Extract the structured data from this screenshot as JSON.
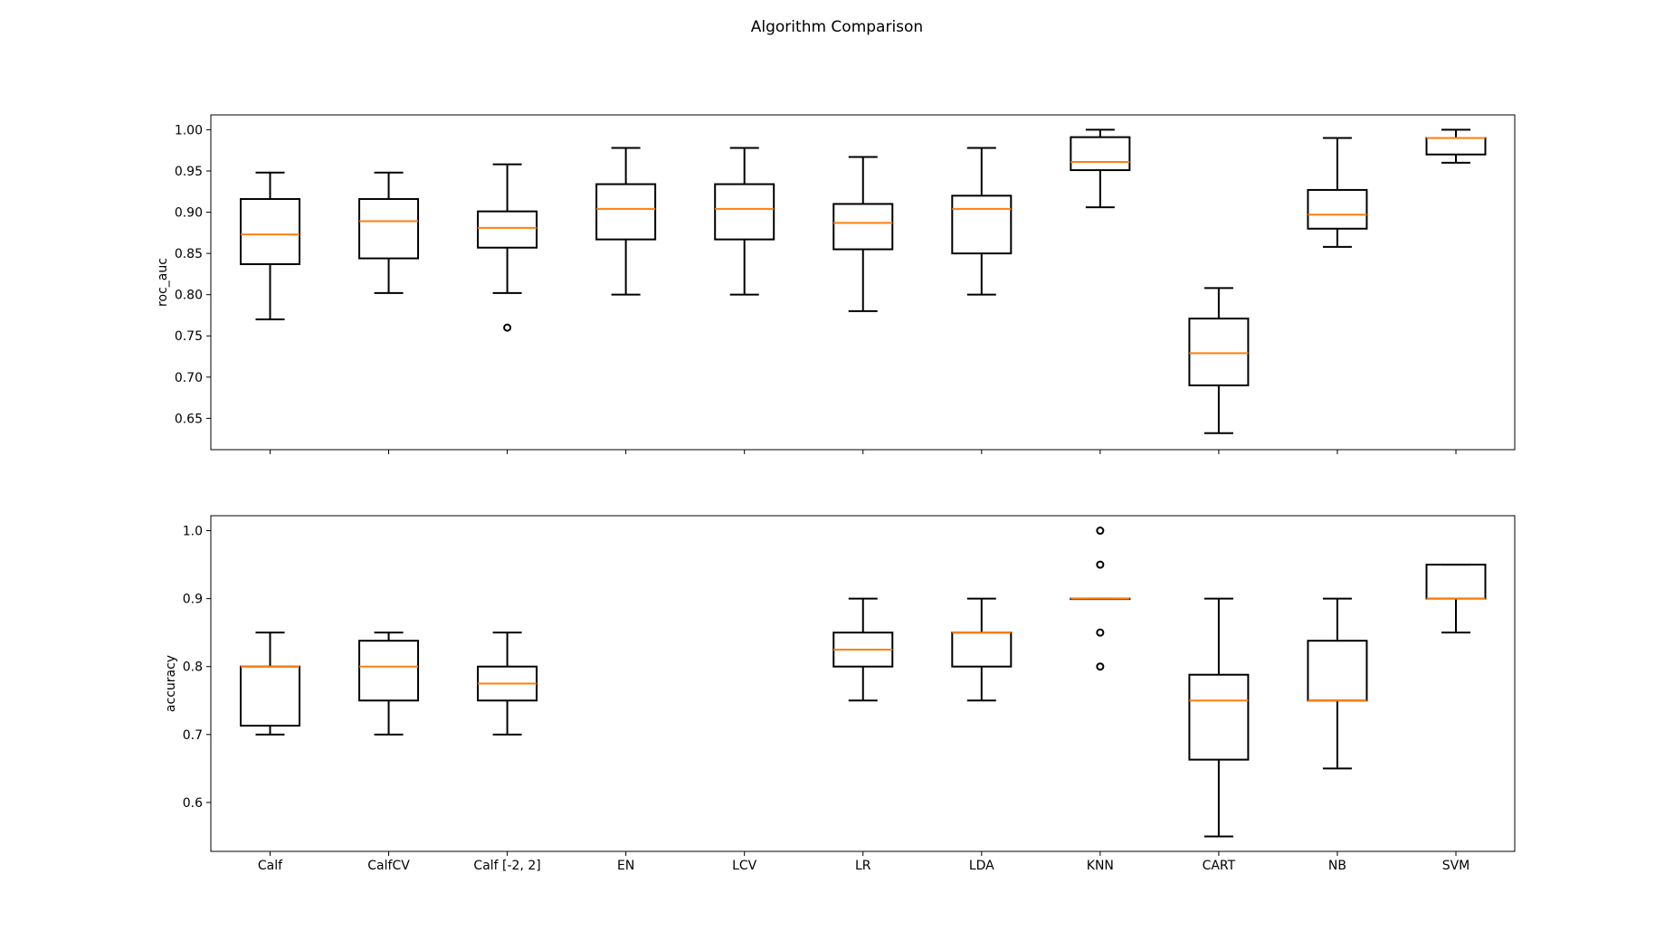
{
  "chart_data": {
    "type": "box",
    "title": "Algorithm Comparison",
    "categories": [
      "Calf",
      "CalfCV",
      "Calf [-2, 2]",
      "EN",
      "LCV",
      "LR",
      "LDA",
      "KNN",
      "CART",
      "NB",
      "SVM"
    ],
    "colors": {
      "box": "#000000",
      "median": "#ff7f0e",
      "background": "#ffffff"
    },
    "panels": [
      {
        "ylabel": "roc_auc",
        "ylim": [
          0.612,
          1.018
        ],
        "yticks": [
          0.65,
          0.7,
          0.75,
          0.8,
          0.85,
          0.9,
          0.95,
          1.0
        ],
        "ytick_labels": [
          "0.65",
          "0.70",
          "0.75",
          "0.80",
          "0.85",
          "0.90",
          "0.95",
          "1.00"
        ],
        "show_xticklabels": false,
        "boxes": [
          {
            "category": "Calf",
            "whislo": 0.77,
            "q1": 0.837,
            "med": 0.873,
            "q3": 0.916,
            "whishi": 0.948,
            "fliers": []
          },
          {
            "category": "CalfCV",
            "whislo": 0.802,
            "q1": 0.844,
            "med": 0.889,
            "q3": 0.916,
            "whishi": 0.948,
            "fliers": []
          },
          {
            "category": "Calf [-2, 2]",
            "whislo": 0.802,
            "q1": 0.857,
            "med": 0.881,
            "q3": 0.901,
            "whishi": 0.958,
            "fliers": [
              0.76
            ]
          },
          {
            "category": "EN",
            "whislo": 0.8,
            "q1": 0.867,
            "med": 0.904,
            "q3": 0.934,
            "whishi": 0.978,
            "fliers": []
          },
          {
            "category": "LCV",
            "whislo": 0.8,
            "q1": 0.867,
            "med": 0.904,
            "q3": 0.934,
            "whishi": 0.978,
            "fliers": []
          },
          {
            "category": "LR",
            "whislo": 0.78,
            "q1": 0.855,
            "med": 0.887,
            "q3": 0.91,
            "whishi": 0.967,
            "fliers": []
          },
          {
            "category": "LDA",
            "whislo": 0.8,
            "q1": 0.85,
            "med": 0.904,
            "q3": 0.92,
            "whishi": 0.978,
            "fliers": []
          },
          {
            "category": "KNN",
            "whislo": 0.906,
            "q1": 0.951,
            "med": 0.961,
            "q3": 0.991,
            "whishi": 1.0,
            "fliers": []
          },
          {
            "category": "CART",
            "whislo": 0.632,
            "q1": 0.69,
            "med": 0.729,
            "q3": 0.771,
            "whishi": 0.808,
            "fliers": []
          },
          {
            "category": "NB",
            "whislo": 0.858,
            "q1": 0.88,
            "med": 0.897,
            "q3": 0.927,
            "whishi": 0.99,
            "fliers": []
          },
          {
            "category": "SVM",
            "whislo": 0.96,
            "q1": 0.97,
            "med": 0.99,
            "q3": 0.99,
            "whishi": 1.0,
            "fliers": []
          }
        ]
      },
      {
        "ylabel": "accuracy",
        "ylim": [
          0.528,
          1.022
        ],
        "yticks": [
          0.6,
          0.7,
          0.8,
          0.9,
          1.0
        ],
        "ytick_labels": [
          "0.6",
          "0.7",
          "0.8",
          "0.9",
          "1.0"
        ],
        "show_xticklabels": true,
        "boxes": [
          {
            "category": "Calf",
            "whislo": 0.7,
            "q1": 0.713,
            "med": 0.8,
            "q3": 0.8,
            "whishi": 0.85,
            "fliers": []
          },
          {
            "category": "CalfCV",
            "whislo": 0.7,
            "q1": 0.75,
            "med": 0.8,
            "q3": 0.838,
            "whishi": 0.85,
            "fliers": []
          },
          {
            "category": "Calf [-2, 2]",
            "whislo": 0.7,
            "q1": 0.75,
            "med": 0.775,
            "q3": 0.8,
            "whishi": 0.85,
            "fliers": []
          },
          {
            "category": "LR",
            "whislo": 0.75,
            "q1": 0.8,
            "med": 0.825,
            "q3": 0.85,
            "whishi": 0.9,
            "fliers": []
          },
          {
            "category": "LDA",
            "whislo": 0.75,
            "q1": 0.8,
            "med": 0.85,
            "q3": 0.85,
            "whishi": 0.9,
            "fliers": []
          },
          {
            "category": "KNN",
            "whislo": 0.9,
            "q1": 0.9,
            "med": 0.9,
            "q3": 0.9,
            "whishi": 0.9,
            "fliers": [
              0.8,
              0.85,
              0.95,
              1.0
            ]
          },
          {
            "category": "CART",
            "whislo": 0.55,
            "q1": 0.663,
            "med": 0.75,
            "q3": 0.788,
            "whishi": 0.9,
            "fliers": []
          },
          {
            "category": "NB",
            "whislo": 0.65,
            "q1": 0.75,
            "med": 0.75,
            "q3": 0.838,
            "whishi": 0.9,
            "fliers": []
          },
          {
            "category": "SVM",
            "whislo": 0.85,
            "q1": 0.9,
            "med": 0.9,
            "q3": 0.95,
            "whishi": 0.95,
            "fliers": []
          }
        ]
      }
    ]
  }
}
